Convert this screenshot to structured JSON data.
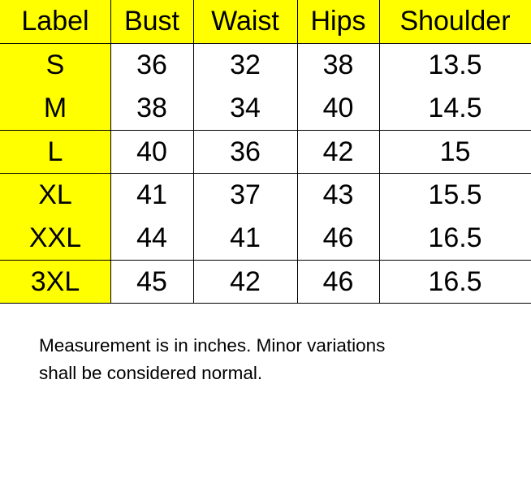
{
  "table": {
    "headers": [
      "Label",
      "Bust",
      "Waist",
      "Hips",
      "Shoulder"
    ],
    "rows": [
      [
        "S",
        "36",
        "32",
        "38",
        "13.5"
      ],
      [
        "M",
        "38",
        "34",
        "40",
        "14.5"
      ],
      [
        "L",
        "40",
        "36",
        "42",
        "15"
      ],
      [
        "XL",
        "41",
        "37",
        "43",
        "15.5"
      ],
      [
        "XXL",
        "44",
        "41",
        "46",
        "16.5"
      ],
      [
        "3XL",
        "45",
        "42",
        "46",
        "16.5"
      ]
    ],
    "highlight_color": "#ffff00"
  },
  "note": {
    "line1": "Measurement is in inches. Minor variations",
    "line2": "shall be considered normal."
  }
}
